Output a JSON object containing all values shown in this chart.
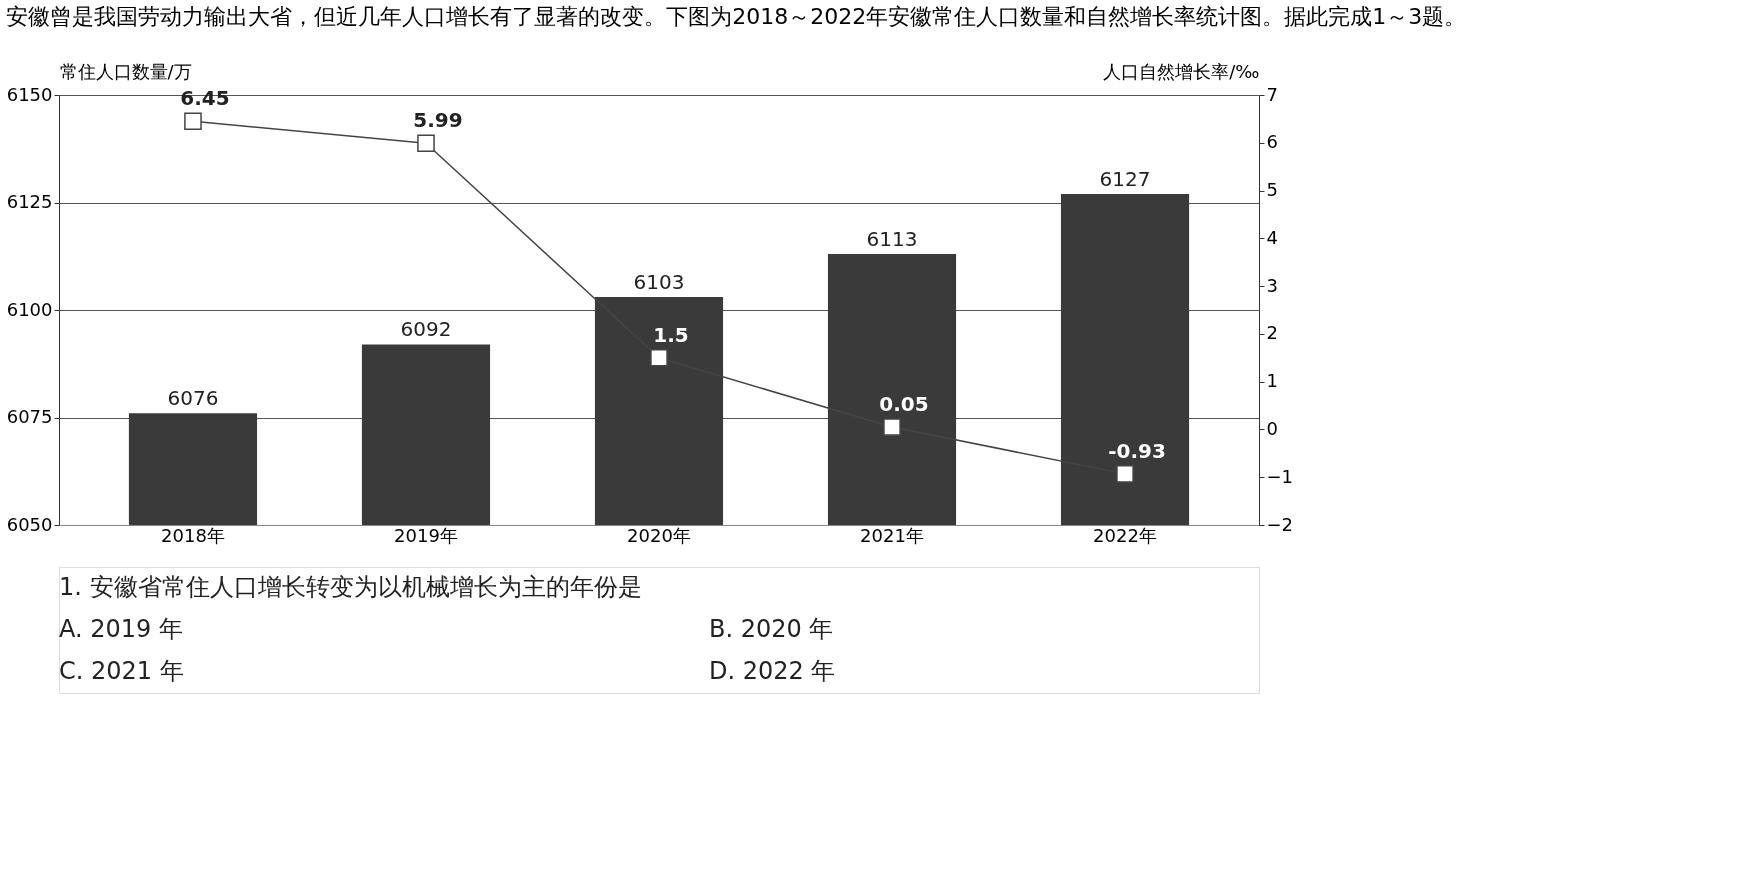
{
  "chart_data": {
    "type": "bar",
    "title": "安徽曾是我国劳动力输出大省，但近几年人口增长有了显著的改变。下图为2018～2022年安徽常住人口数量和自然增长率统计图。据此完成1～3题。",
    "ylabel": "常住人口数量/万",
    "y2label": "人口自然增长率/‰",
    "categories": [
      "2018年",
      "2019年",
      "2020年",
      "2021年",
      "2022年"
    ],
    "series": [
      {
        "color": "#3a3a3a",
        "values": [
          6076,
          6092,
          6103,
          6113,
          6127
        ]
      },
      {
        "type": "line",
        "axis": "y2",
        "color": "#444444",
        "values": [
          6.45,
          5.99,
          1.5,
          0.05,
          -0.93
        ]
      }
    ],
    "ylim": [
      6050,
      6150
    ],
    "yticks": [
      6050,
      6075,
      6100,
      6125,
      6150
    ],
    "y2lim": [
      -2,
      7
    ],
    "y2ticks": [
      -2,
      -1,
      0,
      1,
      2,
      3,
      4,
      5,
      6,
      7
    ],
    "grid": "y",
    "marker": "square",
    "data_labels": true,
    "annotations": [
      "1. 安徽省常住人口增长转变为以机械增长为主的年份是",
      "A. 2019 年",
      "B. 2020 年",
      "C. 2021 年",
      "D. 2022 年"
    ]
  }
}
